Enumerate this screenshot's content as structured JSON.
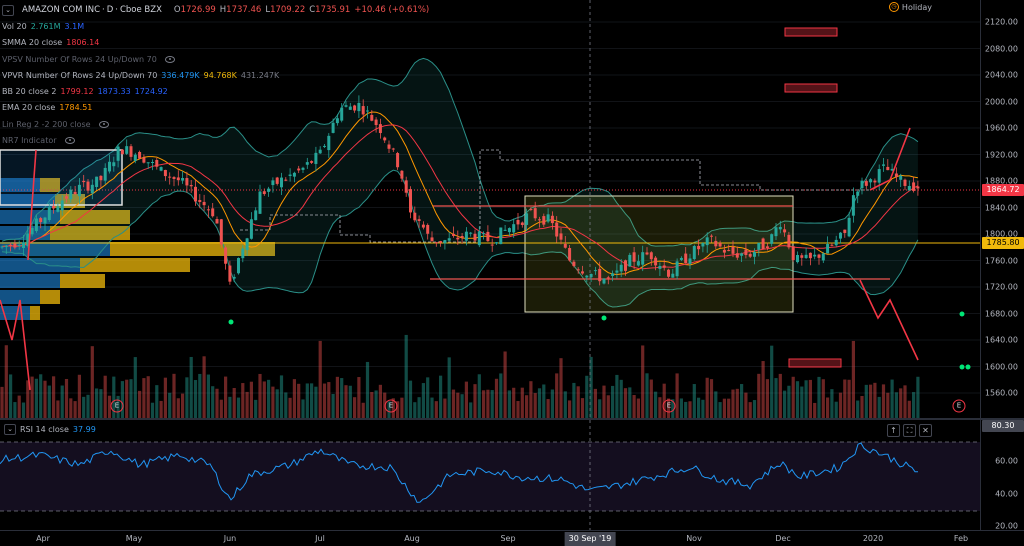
{
  "symbol": {
    "name": "AMAZON COM INC",
    "interval": "D",
    "exchange": "Cboe BZX",
    "open_label": "O",
    "open": "1726.99",
    "high_label": "H",
    "high": "1737.46",
    "low_label": "L",
    "low": "1709.22",
    "close_label": "C",
    "close": "1735.91",
    "change": "+10.46 (+0.61%)"
  },
  "market_status": "Holiday",
  "indicators": [
    {
      "name": "Vol 20",
      "values": [
        "2.761M",
        "3.1M"
      ],
      "colors": [
        "#26a69a",
        "#2962ff"
      ],
      "muted": false,
      "eye": false
    },
    {
      "name": "SMMA 20 close",
      "values": [
        "1806.14"
      ],
      "colors": [
        "#f23645"
      ],
      "muted": false,
      "eye": false
    },
    {
      "name": "VPSV Number Of Rows 24 Up/Down 70",
      "values": [],
      "colors": [],
      "muted": true,
      "eye": true
    },
    {
      "name": "VPVR Number Of Rows 24 Up/Down 70",
      "values": [
        "336.479K",
        "94.768K",
        "431.247K"
      ],
      "colors": [
        "#2196f3",
        "#f0b90b",
        "#787b86"
      ],
      "muted": false,
      "eye": false
    },
    {
      "name": "BB 20 close 2",
      "values": [
        "1799.12",
        "1873.33",
        "1724.92"
      ],
      "colors": [
        "#f23645",
        "#2962ff",
        "#2962ff"
      ],
      "muted": false,
      "eye": false
    },
    {
      "name": "EMA 20 close",
      "values": [
        "1784.51"
      ],
      "colors": [
        "#ff9800"
      ],
      "muted": false,
      "eye": false
    },
    {
      "name": "Lin Reg 2 -2 200 close",
      "values": [],
      "colors": [],
      "muted": true,
      "eye": true
    },
    {
      "name": "NR7 Indicator",
      "values": [],
      "colors": [],
      "muted": true,
      "eye": true
    }
  ],
  "price_axis": {
    "ticks": [
      "2120.00",
      "2080.00",
      "2040.00",
      "2000.00",
      "1960.00",
      "1920.00",
      "1880.00",
      "1840.00",
      "1800.00",
      "1760.00",
      "1720.00",
      "1680.00",
      "1640.00",
      "1600.00",
      "1560.00"
    ],
    "last_price": "1864.72",
    "last_price_color": "#f23645",
    "line_price": "1785.80",
    "line_price_color": "#f0b90b"
  },
  "rsi": {
    "name": "RSI 14 close",
    "value": "37.99",
    "axis_value": "80.30",
    "ticks": [
      "80.00",
      "60.00",
      "40.00",
      "20.00"
    ]
  },
  "time_axis": {
    "labels": [
      "Apr",
      "May",
      "Jun",
      "Jul",
      "Aug",
      "Sep",
      "Nov",
      "Dec",
      "2020",
      "Feb"
    ],
    "cursor": "30 Sep '19"
  },
  "earnings_marker": "E",
  "colors": {
    "up": "#26a69a",
    "down": "#ef5350",
    "rsi": "#2196f3",
    "rsi_band": "#7e57c2"
  }
}
